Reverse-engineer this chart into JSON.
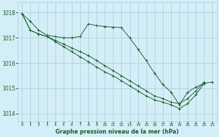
{
  "background_color": "#d4eef7",
  "grid_color": "#aacfdd",
  "line_color": "#1a5e2a",
  "title": "Graphe pression niveau de la mer (hPa)",
  "ylabel_values": [
    1014,
    1015,
    1016,
    1017,
    1018
  ],
  "xlim": [
    -0.5,
    23.5
  ],
  "ylim": [
    1013.7,
    1018.4
  ],
  "series": [
    {
      "x": [
        0,
        1,
        2,
        3,
        4,
        5,
        6,
        7,
        8,
        9,
        10,
        11,
        12,
        13,
        14,
        15,
        16,
        17,
        18,
        19,
        20,
        21,
        22,
        23
      ],
      "y": [
        1017.95,
        1017.65,
        1017.3,
        1017.1,
        1017.05,
        1017.0,
        1017.0,
        1017.05,
        1017.55,
        1017.48,
        1017.45,
        1017.42,
        1017.4,
        1017.0,
        1016.55,
        1016.1,
        1015.6,
        1015.15,
        1014.85,
        1014.35,
        1014.85,
        1015.05,
        1015.2,
        1015.25
      ]
    },
    {
      "x": [
        0,
        1,
        2,
        3,
        4,
        5,
        6,
        7,
        8,
        9,
        10,
        11,
        12,
        13,
        14,
        15,
        16,
        17,
        18,
        19,
        20,
        21,
        22
      ],
      "y": [
        1017.95,
        1017.3,
        1017.15,
        1017.05,
        1016.9,
        1016.75,
        1016.6,
        1016.45,
        1016.3,
        1016.1,
        1015.9,
        1015.7,
        1015.5,
        1015.3,
        1015.1,
        1014.9,
        1014.7,
        1014.6,
        1014.45,
        1014.4,
        1014.6,
        1014.9,
        1015.25
      ]
    },
    {
      "x": [
        0,
        1,
        2,
        3,
        4,
        5,
        6,
        7,
        8,
        9,
        10,
        11,
        12,
        13,
        14,
        15,
        16,
        17,
        18,
        19,
        20,
        21,
        22
      ],
      "y": [
        1017.95,
        1017.3,
        1017.15,
        1017.05,
        1016.85,
        1016.65,
        1016.45,
        1016.25,
        1016.05,
        1015.85,
        1015.65,
        1015.5,
        1015.3,
        1015.1,
        1014.9,
        1014.7,
        1014.55,
        1014.45,
        1014.35,
        1014.2,
        1014.4,
        1014.75,
        1015.2
      ]
    }
  ]
}
